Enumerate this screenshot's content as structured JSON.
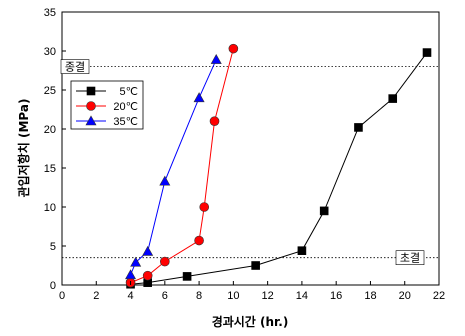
{
  "chart_data": {
    "type": "line",
    "xlabel": "경과시간 (hr.)",
    "ylabel": "관입저항치 (MPa)",
    "xlim": [
      0,
      22
    ],
    "ylim": [
      0,
      35
    ],
    "x_ticks": [
      0,
      2,
      4,
      6,
      8,
      10,
      12,
      14,
      16,
      18,
      20,
      22
    ],
    "y_ticks": [
      0,
      5,
      10,
      15,
      20,
      25,
      30,
      35
    ],
    "grid": false,
    "legend_position": "upper-left",
    "series": [
      {
        "name": "5℃",
        "color": "#000000",
        "marker": "square",
        "x": [
          4.0,
          5.0,
          7.3,
          11.3,
          14.0,
          15.3,
          17.3,
          19.3,
          21.3
        ],
        "y": [
          0.1,
          0.3,
          1.1,
          2.5,
          4.4,
          9.5,
          20.2,
          23.9,
          29.8
        ]
      },
      {
        "name": "20℃",
        "color": "#ff0000",
        "marker": "circle",
        "x": [
          4.0,
          5.0,
          6.0,
          8.0,
          8.3,
          8.9,
          10.0
        ],
        "y": [
          0.3,
          1.2,
          3.0,
          5.7,
          10.0,
          21.0,
          30.3
        ]
      },
      {
        "name": "35℃",
        "color": "#0000ff",
        "marker": "triangle",
        "x": [
          4.0,
          4.3,
          5.0,
          6.0,
          8.0,
          9.0
        ],
        "y": [
          1.3,
          2.9,
          4.3,
          13.3,
          24.0,
          28.9
        ]
      }
    ],
    "reference_lines": [
      {
        "label": "종결",
        "y": 28
      },
      {
        "label": "초결",
        "y": 3.5
      }
    ]
  }
}
